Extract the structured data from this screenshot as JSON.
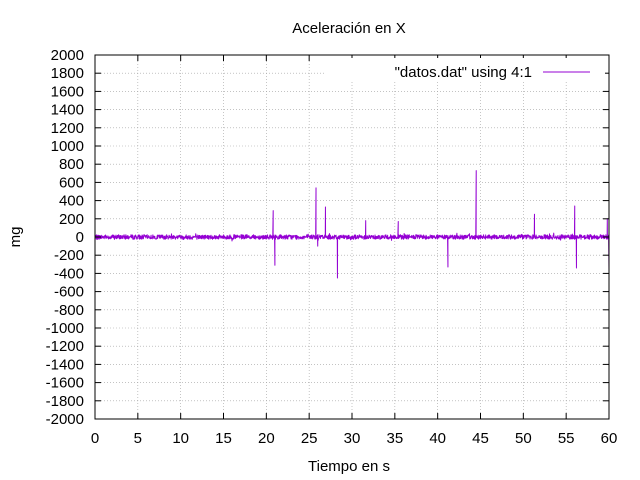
{
  "chart_data": {
    "type": "line",
    "title": "Aceleración en X",
    "xlabel": "Tiempo en s",
    "ylabel": "mg",
    "xlim": [
      0,
      60
    ],
    "ylim": [
      -2000,
      2000
    ],
    "x_ticks": [
      0,
      5,
      10,
      15,
      20,
      25,
      30,
      35,
      40,
      45,
      50,
      55,
      60
    ],
    "y_ticks": [
      -2000,
      -1800,
      -1600,
      -1400,
      -1200,
      -1000,
      -800,
      -600,
      -400,
      -200,
      0,
      200,
      400,
      600,
      800,
      1000,
      1200,
      1400,
      1600,
      1800,
      2000
    ],
    "grid": true,
    "legend_position": "top-right",
    "series": [
      {
        "name": "\"datos.dat\" using 4:1",
        "color": "#9400d3",
        "baseline_noise": 25,
        "x": [
          0,
          20.6,
          20.8,
          21.0,
          25.5,
          25.8,
          26.0,
          26.6,
          26.9,
          28.1,
          28.3,
          28.5,
          31.6,
          31.8,
          35.4,
          35.6,
          41.0,
          41.2,
          41.4,
          44.3,
          44.5,
          44.7,
          51.3,
          51.5,
          55.8,
          56.0,
          56.2,
          59.6,
          59.8,
          60
        ],
        "y": [
          0,
          0,
          290,
          -310,
          0,
          540,
          -100,
          0,
          330,
          0,
          -450,
          0,
          180,
          0,
          170,
          0,
          0,
          -330,
          0,
          0,
          730,
          0,
          250,
          0,
          0,
          340,
          -340,
          0,
          200,
          -370
        ]
      }
    ]
  }
}
